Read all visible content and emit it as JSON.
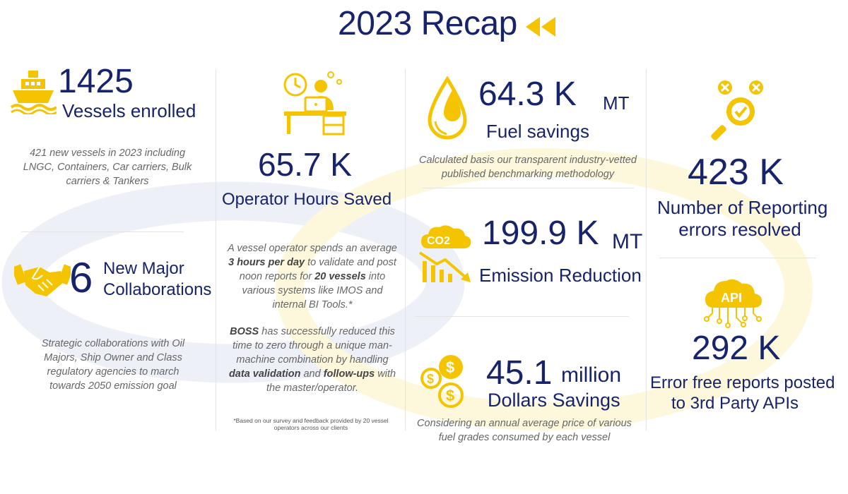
{
  "page_title": "2023 Recap",
  "icons": {
    "rewind": "rewind-icon",
    "ship": "ship-icon",
    "desk": "operator-desk-icon",
    "drop": "fuel-drop-icon",
    "co2": "co2-reduction-icon",
    "magnifier": "error-magnifier-icon",
    "handshake": "handshake-icon",
    "dollars": "dollar-coins-icon",
    "api": "api-cloud-icon"
  },
  "colors": {
    "navy": "#17236b",
    "yellow": "#f5c400",
    "gray_text": "#666666"
  },
  "vessels": {
    "value": "1425",
    "label": "Vessels enrolled",
    "note": "421 new vessels in 2023 including LNGC, Containers, Car carriers, Bulk carriers & Tankers"
  },
  "collaborations": {
    "value": "6",
    "label_line1": "New Major",
    "label_line2": "Collaborations",
    "note": "Strategic collaborations with Oil Majors, Ship Owner and Class regulatory agencies to march towards 2050 emission goal"
  },
  "operator_hours": {
    "value": "65.7 K",
    "label": "Operator Hours Saved",
    "note1": {
      "t1": "A vessel operator spends an average ",
      "b1": "3 hours per day",
      "t2": " to validate and post noon reports for ",
      "b2": "20 vessels",
      "t3": " into various systems like IMOS and internal BI Tools.*"
    },
    "note2": {
      "b1": "BOSS",
      "t1": " has successfully reduced this time to zero through a unique man-machine combination  by handling ",
      "b2": "data validation",
      "t2": " and ",
      "b3": "follow-ups",
      "t3": " with the master/operator."
    },
    "footnote": "*Based on our survey and feedback provided by 20 vessel operators across our clients"
  },
  "fuel": {
    "value": "64.3 K",
    "unit": "MT",
    "label": "Fuel savings",
    "note": "Calculated basis our transparent industry-vetted published benchmarking methodology"
  },
  "emission": {
    "value": "199.9 K",
    "unit": "MT",
    "label": "Emission Reduction",
    "co2_text": "CO2"
  },
  "dollars": {
    "value": "45.1",
    "unit": "million",
    "label": "Dollars Savings",
    "note": "Considering an annual average price of various fuel grades consumed by each vessel"
  },
  "errors": {
    "value": "423 K",
    "label_line1": "Number of Reporting",
    "label_line2": "errors resolved"
  },
  "api_reports": {
    "value": "292 K",
    "label_line1": "Error free reports posted",
    "label_line2": "to 3rd Party APIs",
    "api_text": "API"
  }
}
